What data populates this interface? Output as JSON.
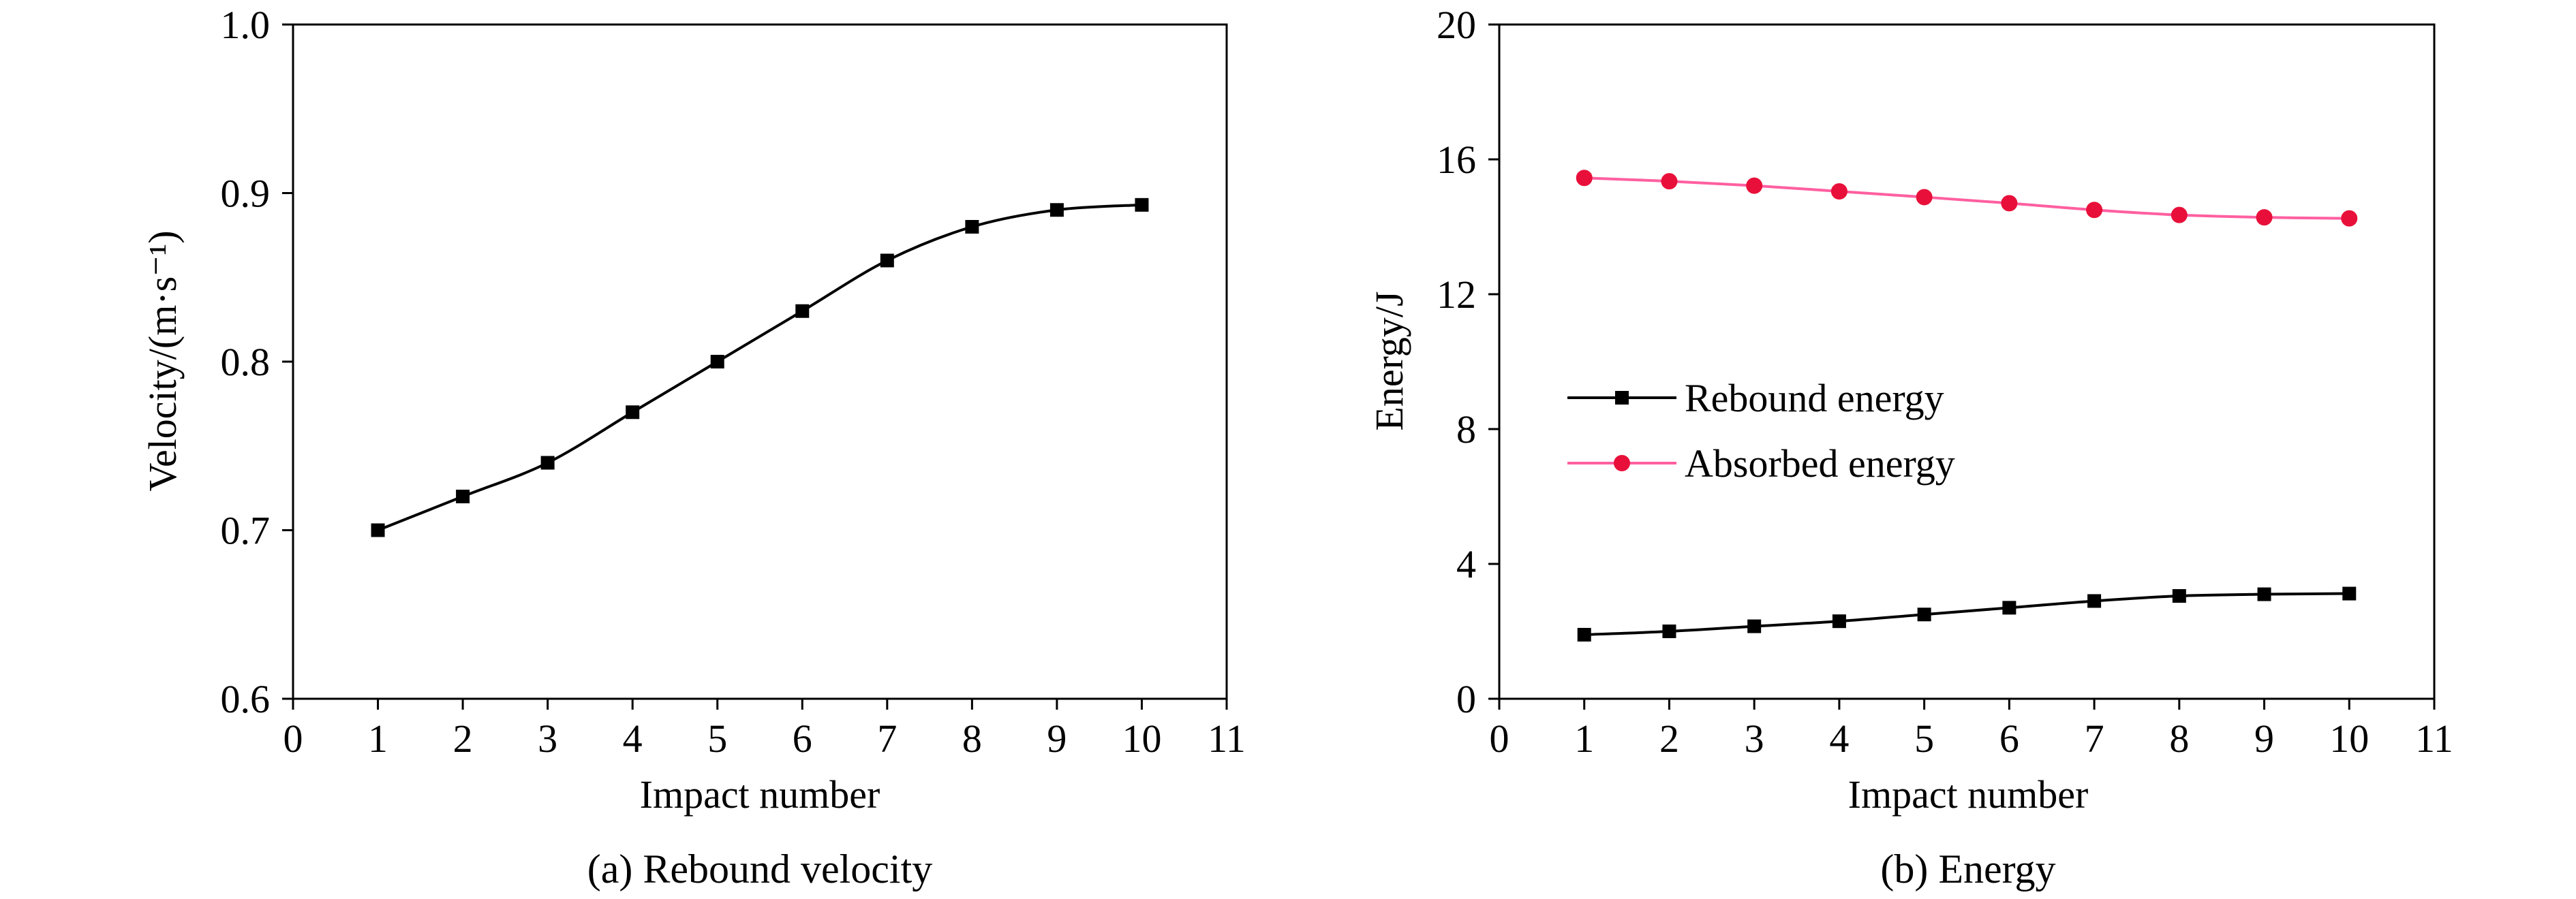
{
  "chart_data": [
    {
      "type": "line",
      "xlabel": "Impact number",
      "ylabel": "Velocity/(m·s⁻¹)",
      "caption": "(a) Rebound velocity",
      "xlim": [
        0,
        11
      ],
      "ylim": [
        0.6,
        1.0
      ],
      "x_ticks": [
        "0",
        "1",
        "2",
        "3",
        "4",
        "5",
        "6",
        "7",
        "8",
        "9",
        "10",
        "11"
      ],
      "y_ticks": [
        "0.6",
        "0.7",
        "0.8",
        "0.9",
        "1.0"
      ],
      "grid": false,
      "series": [
        {
          "color": "#000000",
          "marker": "square",
          "x": [
            1,
            2,
            3,
            4,
            5,
            6,
            7,
            8,
            9,
            10
          ],
          "values": [
            0.7,
            0.72,
            0.74,
            0.77,
            0.8,
            0.83,
            0.86,
            0.88,
            0.89,
            0.893
          ]
        }
      ]
    },
    {
      "type": "line",
      "xlabel": "Impact number",
      "ylabel": "Energy/J",
      "caption": "(b) Energy",
      "xlim": [
        0,
        11
      ],
      "ylim": [
        0,
        20
      ],
      "x_ticks": [
        "0",
        "1",
        "2",
        "3",
        "4",
        "5",
        "6",
        "7",
        "8",
        "9",
        "10",
        "11"
      ],
      "y_ticks": [
        "0",
        "4",
        "8",
        "12",
        "16",
        "20"
      ],
      "grid": false,
      "legend_position": "left-middle",
      "series": [
        {
          "name": "Rebound energy",
          "color": "#000000",
          "marker": "square",
          "x": [
            1,
            2,
            3,
            4,
            5,
            6,
            7,
            8,
            9,
            10
          ],
          "values": [
            1.9,
            2.0,
            2.15,
            2.3,
            2.5,
            2.7,
            2.9,
            3.05,
            3.1,
            3.12
          ]
        },
        {
          "name": "Absorbed energy",
          "color": "#e8103a",
          "line_color": "#ff5fa0",
          "marker": "circle",
          "x": [
            1,
            2,
            3,
            4,
            5,
            6,
            7,
            8,
            9,
            10
          ],
          "values": [
            15.45,
            15.35,
            15.22,
            15.05,
            14.88,
            14.7,
            14.5,
            14.35,
            14.28,
            14.25
          ]
        }
      ]
    }
  ]
}
